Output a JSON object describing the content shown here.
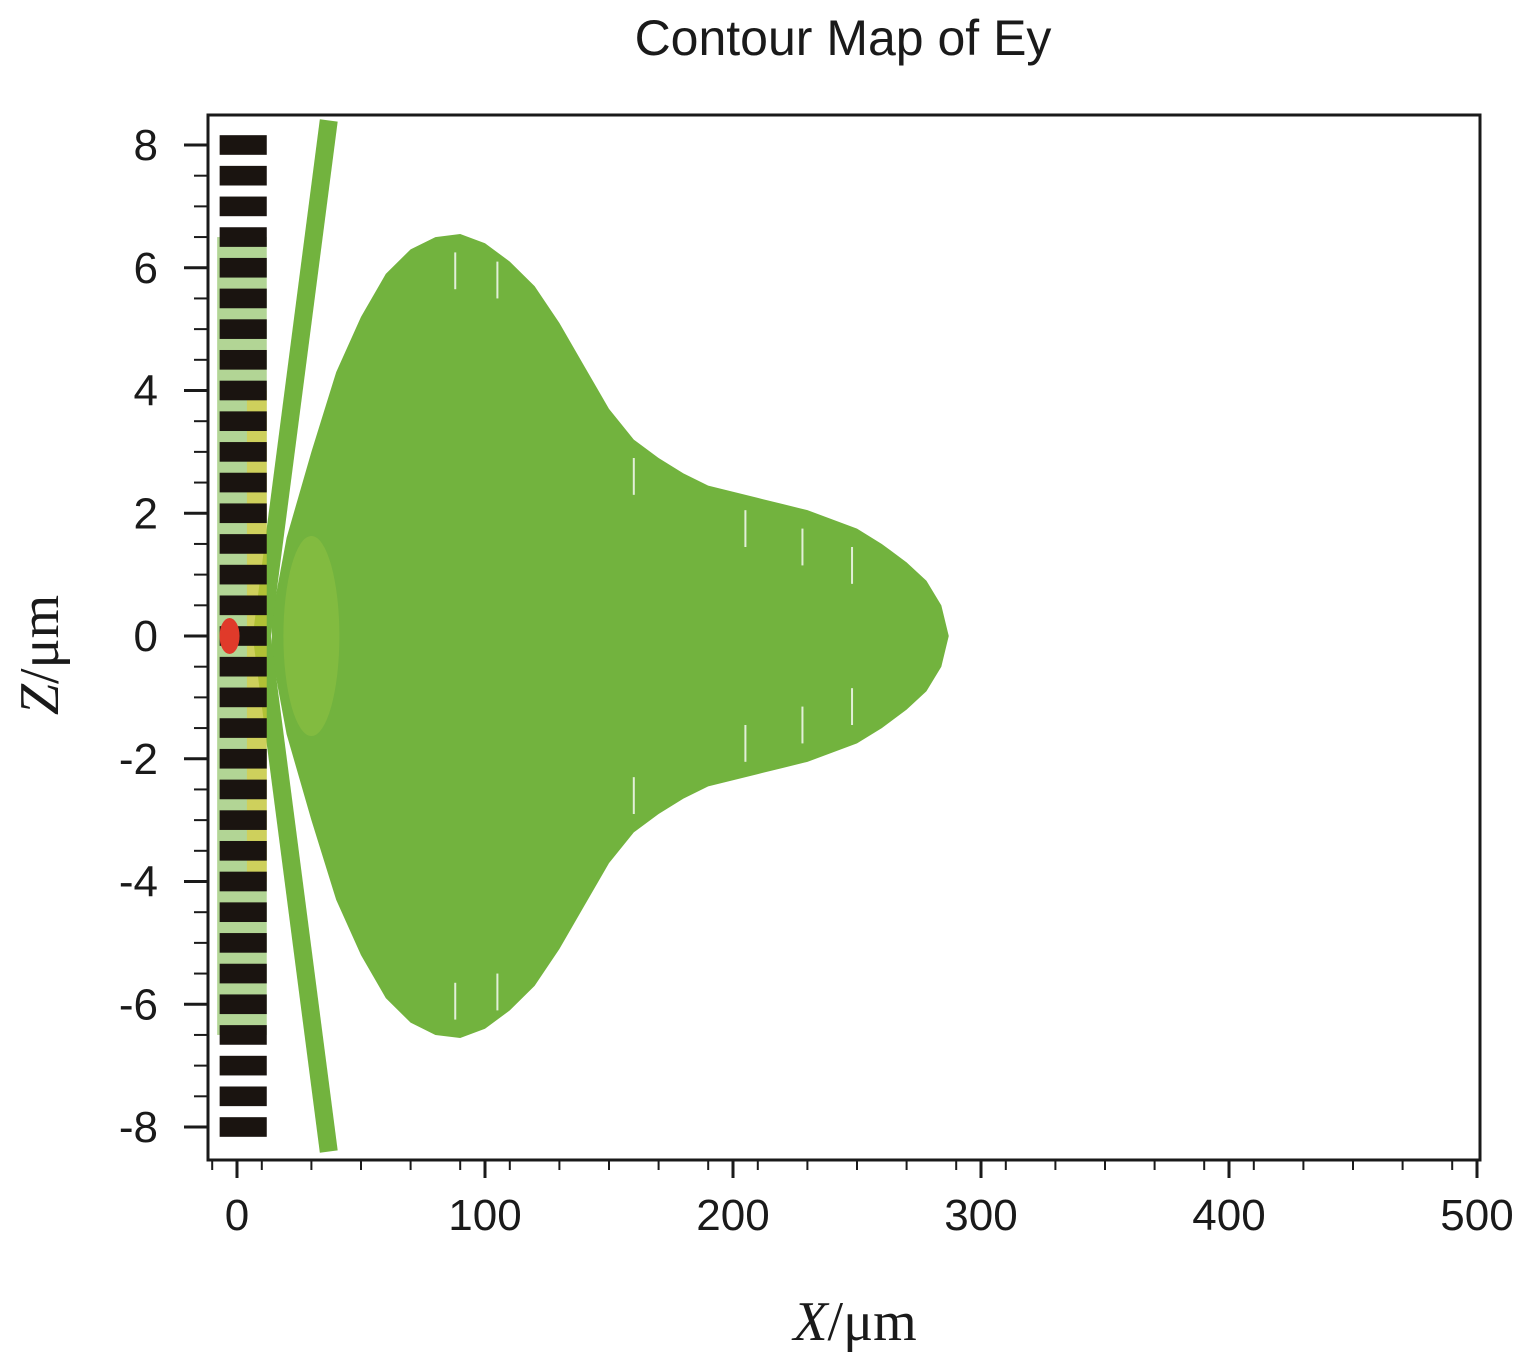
{
  "chart_data": {
    "type": "heatmap",
    "title": "Contour Map of Ey",
    "xlabel": "X/μm",
    "ylabel": "Z/μm",
    "xlabel_italic": "X",
    "xlabel_unit": "/μm",
    "ylabel_italic": "Z",
    "ylabel_unit": "/μm",
    "xlim": [
      -12,
      500
    ],
    "ylim": [
      -8.4,
      8.4
    ],
    "x_ticks": [
      0,
      100,
      200,
      300,
      400,
      500
    ],
    "x_tick_labels": [
      "0",
      "100",
      "200",
      "300",
      "400",
      "500"
    ],
    "y_ticks": [
      -8,
      -6,
      -4,
      -2,
      0,
      2,
      4,
      6,
      8
    ],
    "y_tick_labels": [
      "-8",
      "-6",
      "-4",
      "-2",
      "0",
      "2",
      "4",
      "6",
      "8"
    ],
    "grid": false,
    "colors": {
      "field": "#72b33e",
      "field_light": "#8dc043",
      "hot": "#e03a2a",
      "warm": "#e6cc2e",
      "structure": "#1a1410",
      "axis": "#1a1a1a"
    },
    "field_envelope": [
      {
        "x": 14,
        "z": 0.3
      },
      {
        "x": 20,
        "z": 1.6
      },
      {
        "x": 30,
        "z": 3.0
      },
      {
        "x": 40,
        "z": 4.3
      },
      {
        "x": 50,
        "z": 5.2
      },
      {
        "x": 60,
        "z": 5.9
      },
      {
        "x": 70,
        "z": 6.3
      },
      {
        "x": 80,
        "z": 6.5
      },
      {
        "x": 90,
        "z": 6.55
      },
      {
        "x": 100,
        "z": 6.4
      },
      {
        "x": 110,
        "z": 6.1
      },
      {
        "x": 120,
        "z": 5.7
      },
      {
        "x": 130,
        "z": 5.1
      },
      {
        "x": 140,
        "z": 4.4
      },
      {
        "x": 150,
        "z": 3.7
      },
      {
        "x": 160,
        "z": 3.2
      },
      {
        "x": 170,
        "z": 2.9
      },
      {
        "x": 180,
        "z": 2.65
      },
      {
        "x": 190,
        "z": 2.45
      },
      {
        "x": 200,
        "z": 2.35
      },
      {
        "x": 210,
        "z": 2.25
      },
      {
        "x": 220,
        "z": 2.15
      },
      {
        "x": 230,
        "z": 2.05
      },
      {
        "x": 240,
        "z": 1.9
      },
      {
        "x": 250,
        "z": 1.75
      },
      {
        "x": 260,
        "z": 1.5
      },
      {
        "x": 270,
        "z": 1.2
      },
      {
        "x": 278,
        "z": 0.9
      },
      {
        "x": 284,
        "z": 0.5
      },
      {
        "x": 287,
        "z": 0.0
      }
    ],
    "diverging_beams": [
      {
        "x0": 10,
        "z0": 0.0,
        "x1": 37,
        "z1": 8.4
      },
      {
        "x0": 10,
        "z0": 0.0,
        "x1": 37,
        "z1": -8.4
      }
    ],
    "grating": {
      "x_start": -7,
      "x_end": 12,
      "z_positions": [
        8.0,
        7.5,
        7.0,
        6.5,
        6.0,
        5.5,
        5.0,
        4.5,
        4.0,
        3.5,
        3.0,
        2.5,
        2.0,
        1.5,
        1.0,
        0.5,
        0.0,
        -0.5,
        -1.0,
        -1.5,
        -2.0,
        -2.5,
        -3.0,
        -3.5,
        -4.0,
        -4.5,
        -5.0,
        -5.5,
        -6.0,
        -6.5,
        -7.0,
        -7.5,
        -8.0
      ]
    },
    "hot_spot": {
      "x": -3,
      "z": 0.0
    }
  }
}
